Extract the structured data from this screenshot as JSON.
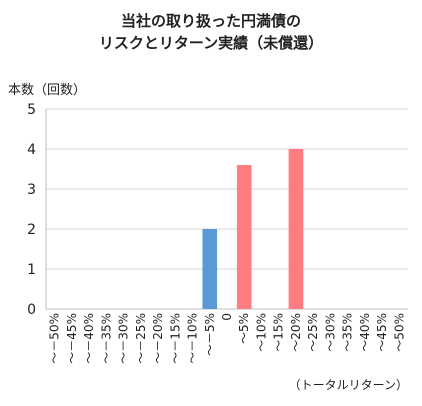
{
  "chart_data": {
    "type": "bar",
    "title": [
      "当社の取り扱った円満債の",
      "リスクとリターン実績（未償還）"
    ],
    "ylabel": "本数（回数）",
    "xlabel": "（トータルリターン）",
    "ylim": [
      0,
      5
    ],
    "yticks": [
      0,
      1,
      2,
      3,
      4,
      5
    ],
    "grid": true,
    "categories": [
      "～－50%",
      "～－45%",
      "～－40%",
      "～－35%",
      "～－30%",
      "～－25%",
      "～－20%",
      "～－15%",
      "～－10%",
      "～－5%",
      "0",
      "～5%",
      "～10%",
      "～15%",
      "～20%",
      "～25%",
      "～30%",
      "～35%",
      "～40%",
      "～45%",
      "～50%"
    ],
    "values": [
      0,
      0,
      0,
      0,
      0,
      0,
      0,
      0,
      0,
      2,
      0,
      3.6,
      0,
      0,
      4,
      0,
      0,
      0,
      0,
      0,
      0
    ],
    "colors": {
      "negative": "#5b9bd5",
      "positive": "#ff7c80",
      "grid": "#d9d9d9",
      "axis": "#bfbfbf"
    }
  }
}
